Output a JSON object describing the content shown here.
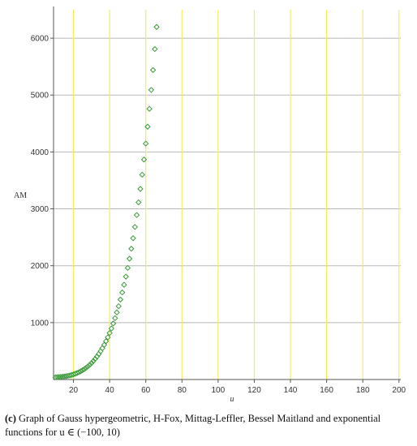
{
  "chart_data": {
    "type": "scatter",
    "title": "",
    "xlabel": "u",
    "ylabel": "AM",
    "xlim": [
      9,
      201
    ],
    "ylim": [
      0,
      6500
    ],
    "x_ticks": [
      20,
      40,
      60,
      80,
      100,
      120,
      140,
      160,
      180,
      200
    ],
    "y_ticks": [
      1000,
      2000,
      3000,
      4000,
      5000,
      6000
    ],
    "grid": true,
    "series": [
      {
        "marker": "diamond",
        "color": "#3a9a3a",
        "points": [
          [
            10,
            40
          ],
          [
            11,
            42
          ],
          [
            12,
            44
          ],
          [
            13,
            47
          ],
          [
            14,
            50
          ],
          [
            15,
            54
          ],
          [
            16,
            59
          ],
          [
            17,
            65
          ],
          [
            18,
            72
          ],
          [
            19,
            80
          ],
          [
            20,
            90
          ],
          [
            21,
            101
          ],
          [
            22,
            114
          ],
          [
            23,
            128
          ],
          [
            24,
            144
          ],
          [
            25,
            163
          ],
          [
            26,
            183
          ],
          [
            27,
            206
          ],
          [
            28,
            231
          ],
          [
            29,
            259
          ],
          [
            30,
            290
          ],
          [
            31,
            324
          ],
          [
            32,
            362
          ],
          [
            33,
            403
          ],
          [
            34,
            448
          ],
          [
            35,
            497
          ],
          [
            36,
            551
          ],
          [
            37,
            609
          ],
          [
            38,
            673
          ],
          [
            39,
            742
          ],
          [
            40,
            817
          ],
          [
            41,
            897
          ],
          [
            42,
            985
          ],
          [
            43,
            1079
          ],
          [
            44,
            1180
          ],
          [
            45,
            1289
          ],
          [
            46,
            1406
          ],
          [
            47,
            1531
          ],
          [
            48,
            1665
          ],
          [
            49,
            1808
          ],
          [
            50,
            1961
          ],
          [
            51,
            2124
          ],
          [
            52,
            2299
          ],
          [
            53,
            2484
          ],
          [
            54,
            2681
          ],
          [
            55,
            2891
          ],
          [
            56,
            3114
          ],
          [
            57,
            3350
          ],
          [
            58,
            3600
          ],
          [
            59,
            3866
          ],
          [
            60,
            4147
          ],
          [
            61,
            4444
          ],
          [
            62,
            4758
          ],
          [
            63,
            5090
          ],
          [
            64,
            5440
          ],
          [
            65,
            5809
          ],
          [
            66,
            6197
          ]
        ]
      }
    ],
    "colors": {
      "grid_vertical": "#f2ee5a",
      "grid_horizontal": "#b8b8b8",
      "axis": "#555555"
    }
  },
  "caption": {
    "letter": "(c)",
    "text": "Graph of Gauss hypergeometric, H-Fox, Mittag-Leffler, Bessel Maitland and exponential functions for u ∈ (−100, 10)"
  }
}
